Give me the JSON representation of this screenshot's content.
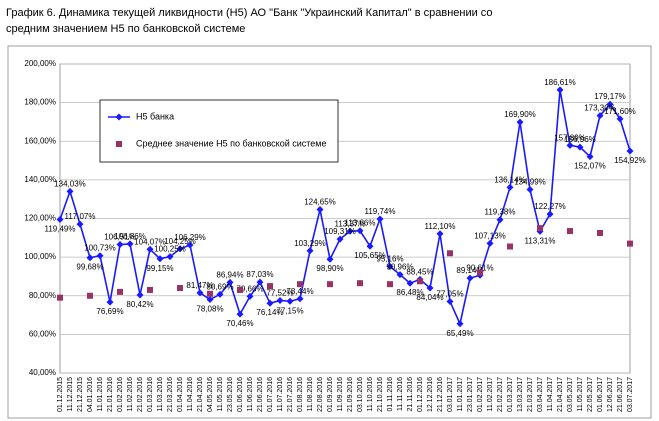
{
  "chart_data": {
    "type": "line",
    "title": [
      "График 6.  Динамика текущей ликвидности (Н5) АО \"Банк \"Украинский Капитал\" в сравнении со",
      "средним значением Н5 по банковской системе"
    ],
    "categories": [
      "01.12.2015",
      "11.12.2015",
      "21.12.2015",
      "04.01.2016",
      "11.01.2016",
      "21.01.2016",
      "01.02.2016",
      "11.02.2016",
      "21.02.2016",
      "01.03.2016",
      "11.03.2016",
      "21.03.2016",
      "01.04.2016",
      "11.04.2016",
      "21.04.2016",
      "04.05.2016",
      "11.05.2016",
      "23.05.2016",
      "01.06.2016",
      "11.06.2016",
      "21.06.2016",
      "01.07.2016",
      "11.07.2016",
      "21.07.2016",
      "01.08.2016",
      "11.08.2016",
      "22.08.2016",
      "01.09.2016",
      "11.09.2016",
      "21.09.2016",
      "03.10.2016",
      "11.10.2016",
      "21.10.2016",
      "01.11.2016",
      "11.11.2016",
      "21.11.2016",
      "01.12.2016",
      "12.12.2016",
      "21.12.2016",
      "03.01.2017",
      "11.01.2017",
      "23.01.2017",
      "01.02.2017",
      "11.02.2017",
      "21.02.2017",
      "01.03.2017",
      "13.03.2017",
      "21.03.2017",
      "03.04.2017",
      "11.04.2017",
      "21.04.2017",
      "03.05.2017",
      "11.05.2017",
      "22.05.2017",
      "01.06.2017",
      "12.06.2017",
      "21.06.2017",
      "03.07.2017"
    ],
    "series": [
      {
        "name": "Н5 банка",
        "color": "#1a1aff",
        "marker": "diamond",
        "line": true,
        "values": [
          119.49,
          134.03,
          117.07,
          99.68,
          100.73,
          76.69,
          106.51,
          106.86,
          80.42,
          104.07,
          99.15,
          100.25,
          104.25,
          106.29,
          81.47,
          78.08,
          80.69,
          86.94,
          70.46,
          79.66,
          87.03,
          76.14,
          77.52,
          77.15,
          78.44,
          103.29,
          124.65,
          98.9,
          109.31,
          113.37,
          113.66,
          105.65,
          119.74,
          95.16,
          90.96,
          86.48,
          88.45,
          84.04,
          112.1,
          77.05,
          65.49,
          89.14,
          90.61,
          107.13,
          119.38,
          136.14,
          169.9,
          134.99,
          113.31,
          122.27,
          186.61,
          157.89,
          156.96,
          152.07,
          173.3,
          179.17,
          171.6,
          154.92
        ],
        "value_labels": [
          "119,49%",
          "134,03%",
          "117,07%",
          "99,68%",
          "100,73%",
          "76,69%",
          "106,51%",
          "106,86%",
          "80,42%",
          "104,07%",
          "99,15%",
          "100,25%",
          "104,25%",
          "106,29%",
          "81,47%",
          "78,08%",
          "80,69%",
          "86,94%",
          "70,46%",
          "79,66%",
          "87,03%",
          "76,14%",
          "77,52%",
          "77,15%",
          "78,44%",
          "103,29%",
          "124,65%",
          "98,90%",
          "109,31%",
          "113,37%",
          "113,66%",
          "105,65%",
          "119,74%",
          "95,16%",
          "90,96%",
          "86,48%",
          "88,45%",
          "84,04%",
          "112,10%",
          "77,05%",
          "65,49%",
          "89,14%",
          "90,61%",
          "107,13%",
          "119,38%",
          "136,14%",
          "169,90%",
          "134,99%",
          "113,31%",
          "122,27%",
          "186,61%",
          "157,89%",
          "156,96%",
          "152,07%",
          "173,30%",
          "179,17%",
          "171,60%",
          "154,92%"
        ]
      },
      {
        "name": "Среднее значение Н5 по банковской системе",
        "color": "#993366",
        "marker": "square",
        "line": false,
        "values": [
          79,
          null,
          null,
          80,
          null,
          null,
          82,
          null,
          null,
          83,
          null,
          null,
          84,
          null,
          null,
          81,
          null,
          null,
          83,
          null,
          null,
          85,
          null,
          null,
          86,
          null,
          null,
          86,
          null,
          null,
          86.5,
          null,
          null,
          86,
          null,
          null,
          87.5,
          null,
          null,
          102,
          null,
          null,
          92,
          null,
          null,
          105.5,
          null,
          null,
          115,
          null,
          null,
          113.5,
          null,
          null,
          112.5,
          null,
          null,
          107
        ]
      }
    ],
    "ylim": [
      40,
      200
    ],
    "yticks": [
      {
        "value": 40,
        "label": "40,00%"
      },
      {
        "value": 60,
        "label": "60,00%"
      },
      {
        "value": 80,
        "label": "80,00%"
      },
      {
        "value": 100,
        "label": "100,00%"
      },
      {
        "value": 120,
        "label": "120,00%"
      },
      {
        "value": 140,
        "label": "140,00%"
      },
      {
        "value": 160,
        "label": "160,00%"
      },
      {
        "value": 180,
        "label": "180,00%"
      },
      {
        "value": 200,
        "label": "200,00%"
      }
    ],
    "grid": true,
    "legend": "upper left"
  }
}
